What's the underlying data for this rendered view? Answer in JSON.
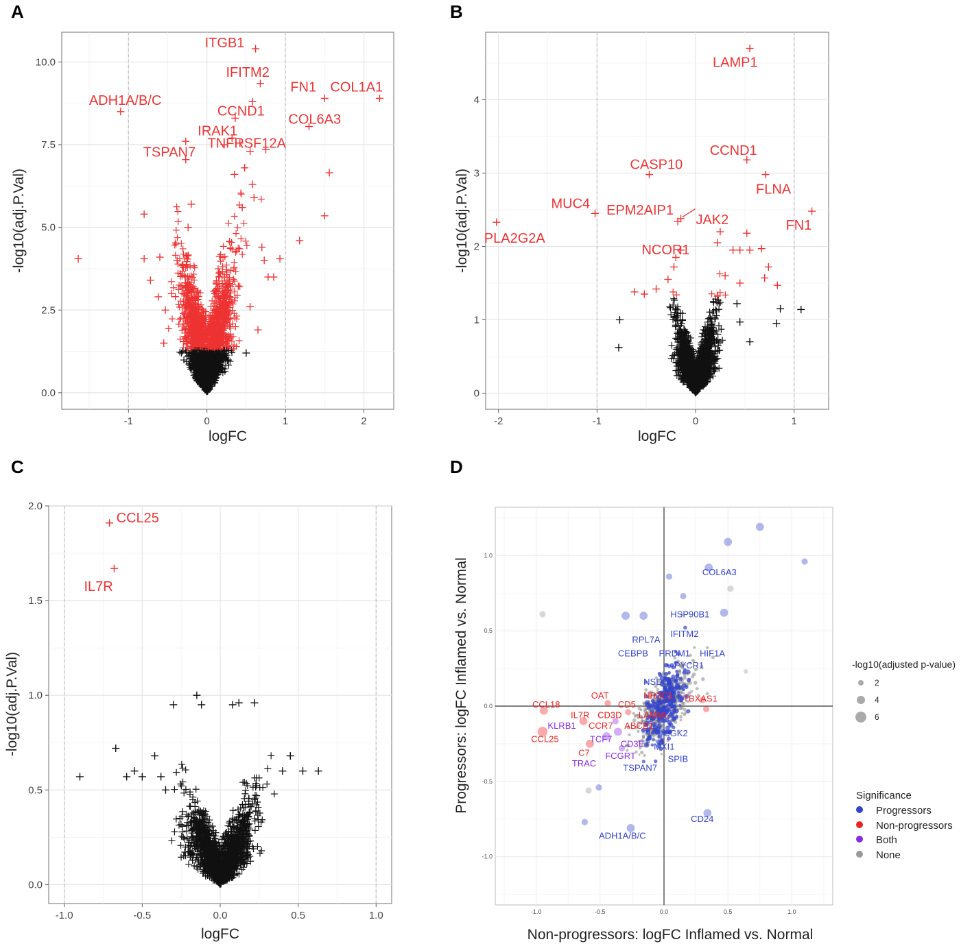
{
  "chart_data": [
    {
      "panel": "A",
      "type": "scatter",
      "xlabel": "logFC",
      "ylabel": "-log10(adj.P.Val)",
      "xlim": [
        -1.85,
        2.38
      ],
      "ylim": [
        -0.5,
        10.9
      ],
      "xticks": [
        -1,
        0,
        1,
        2
      ],
      "yticks": [
        0.0,
        2.5,
        5.0,
        7.5,
        10.0
      ],
      "ytick_labels": [
        "0.0",
        "2.5",
        "5.0",
        "7.5",
        "10.0"
      ],
      "vlines": [
        -1,
        1
      ],
      "sig_threshold": 1.3,
      "cloud": {
        "n": 2600,
        "spread": 0.15,
        "exp": 0.2,
        "ymax": 9.4,
        "seed": 11
      },
      "points": [
        {
          "x": 0.62,
          "y": 10.4,
          "label": "ITGB1"
        },
        {
          "x": 0.68,
          "y": 9.35,
          "label": "IFITM2"
        },
        {
          "x": 1.5,
          "y": 8.9,
          "label": "FN1"
        },
        {
          "x": 2.2,
          "y": 8.9,
          "label": "COL1A1"
        },
        {
          "x": -1.1,
          "y": 8.5,
          "label": "ADH1A/B/C"
        },
        {
          "x": 0.36,
          "y": 8.3,
          "label": "CCND1"
        },
        {
          "x": 1.3,
          "y": 8.05,
          "label": "COL6A3"
        },
        {
          "x": 0.32,
          "y": 7.7,
          "label": "IRAK1"
        },
        {
          "x": -0.27,
          "y": 7.05,
          "label": "TSPAN7"
        },
        {
          "x": 0.75,
          "y": 7.35,
          "label": "TNFRSF12A"
        },
        {
          "x": -1.64,
          "y": 4.05
        },
        {
          "x": -0.8,
          "y": 5.4
        },
        {
          "x": -0.8,
          "y": 4.05
        },
        {
          "x": -0.72,
          "y": 3.4
        },
        {
          "x": -0.62,
          "y": 2.9
        },
        {
          "x": -0.6,
          "y": 4.1
        },
        {
          "x": -0.55,
          "y": 1.5
        },
        {
          "x": -0.53,
          "y": 2.5
        },
        {
          "x": -0.45,
          "y": 3.0
        },
        {
          "x": -0.38,
          "y": 4.0
        },
        {
          "x": -0.27,
          "y": 7.6
        },
        {
          "x": -0.24,
          "y": 5.0
        },
        {
          "x": -0.2,
          "y": 5.7
        },
        {
          "x": 0.22,
          "y": 7.5
        },
        {
          "x": 0.42,
          "y": 7.55
        },
        {
          "x": 0.55,
          "y": 7.3
        },
        {
          "x": 0.58,
          "y": 8.8
        },
        {
          "x": 0.48,
          "y": 6.8
        },
        {
          "x": 0.58,
          "y": 6.3
        },
        {
          "x": 0.35,
          "y": 6.6
        },
        {
          "x": 0.45,
          "y": 5.6
        },
        {
          "x": 0.6,
          "y": 5.9
        },
        {
          "x": 0.7,
          "y": 4.4
        },
        {
          "x": 0.73,
          "y": 4.0
        },
        {
          "x": 0.78,
          "y": 3.5
        },
        {
          "x": 0.85,
          "y": 3.5
        },
        {
          "x": 0.93,
          "y": 4.05
        },
        {
          "x": 1.18,
          "y": 4.6
        },
        {
          "x": 1.5,
          "y": 5.35
        },
        {
          "x": 1.56,
          "y": 6.65
        },
        {
          "x": 0.65,
          "y": 1.9
        },
        {
          "x": 0.5,
          "y": 1.2
        },
        {
          "x": 0.55,
          "y": 2.6
        }
      ]
    },
    {
      "panel": "B",
      "type": "scatter",
      "xlabel": "logFC",
      "ylabel": "-log10(adj.P.Val)",
      "xlim": [
        -2.13,
        1.35
      ],
      "ylim": [
        -0.22,
        4.92
      ],
      "xticks": [
        -2,
        -1,
        0,
        1
      ],
      "yticks": [
        0,
        1,
        2,
        3,
        4
      ],
      "ytick_labels": [
        "0",
        "1",
        "2",
        "3",
        "4"
      ],
      "vlines": [
        -1,
        1
      ],
      "sig_threshold": 1.3,
      "cloud": {
        "n": 2000,
        "spread": 0.09,
        "exp": 0.22,
        "ymax": 2.05,
        "seed": 23
      },
      "points": [
        {
          "x": 0.55,
          "y": 4.7,
          "label": "LAMP1"
        },
        {
          "x": 0.52,
          "y": 3.18,
          "label": "CCND1"
        },
        {
          "x": -0.47,
          "y": 2.98,
          "label": "CASP10"
        },
        {
          "x": 0.71,
          "y": 2.98,
          "label": "FLNA"
        },
        {
          "x": -1.02,
          "y": 2.45,
          "label": "MUC4"
        },
        {
          "x": -0.18,
          "y": 2.34,
          "label": "EPM2AIP1"
        },
        {
          "x": -0.15,
          "y": 2.38,
          "label": "JAK2"
        },
        {
          "x": -2.02,
          "y": 2.33,
          "label": "PLA2G2A"
        },
        {
          "x": -0.15,
          "y": 1.95,
          "label": "NCOR1"
        },
        {
          "x": 1.18,
          "y": 2.48,
          "label": "FN1"
        },
        {
          "x": -0.2,
          "y": 1.85
        },
        {
          "x": 0.52,
          "y": 2.18
        },
        {
          "x": 0.25,
          "y": 2.2
        },
        {
          "x": 0.22,
          "y": 2.05
        },
        {
          "x": 0.38,
          "y": 1.95
        },
        {
          "x": 0.45,
          "y": 1.95
        },
        {
          "x": 0.55,
          "y": 1.95
        },
        {
          "x": 0.67,
          "y": 1.97
        },
        {
          "x": 0.74,
          "y": 1.72
        },
        {
          "x": 0.7,
          "y": 1.57
        },
        {
          "x": 0.83,
          "y": 1.47
        },
        {
          "x": 0.45,
          "y": 1.5
        },
        {
          "x": -0.62,
          "y": 1.38
        },
        {
          "x": -0.52,
          "y": 1.35
        },
        {
          "x": -0.4,
          "y": 1.42
        },
        {
          "x": -0.28,
          "y": 1.55
        },
        {
          "x": -0.22,
          "y": 1.72
        },
        {
          "x": 0.3,
          "y": 1.6
        },
        {
          "x": -0.77,
          "y": 1.0
        },
        {
          "x": -0.78,
          "y": 0.62
        },
        {
          "x": 0.42,
          "y": 1.22
        },
        {
          "x": 0.82,
          "y": 0.95
        },
        {
          "x": 0.86,
          "y": 1.15
        },
        {
          "x": 1.07,
          "y": 1.14
        },
        {
          "x": 0.45,
          "y": 0.97
        },
        {
          "x": 0.55,
          "y": 0.7
        }
      ]
    },
    {
      "panel": "C",
      "type": "scatter",
      "xlabel": "logFC",
      "ylabel": "-log10(adj.P.Val)",
      "xlim": [
        -1.1,
        1.1
      ],
      "ylim": [
        -0.1,
        2.0
      ],
      "xticks": [
        -1.0,
        -0.5,
        0.0,
        0.5,
        1.0
      ],
      "yticks": [
        0.0,
        0.5,
        1.0,
        1.5,
        2.0
      ],
      "ytick_labels": [
        "0.0",
        "0.5",
        "1.0",
        "1.5",
        "2.0"
      ],
      "vlines": [
        -1,
        1
      ],
      "sig_threshold": 1.3,
      "cloud": {
        "n": 1700,
        "spread": 0.1,
        "exp": 0.5,
        "ymax": 0.98,
        "seed": 37
      },
      "points": [
        {
          "x": -0.71,
          "y": 1.91,
          "label": "CCL25"
        },
        {
          "x": -0.68,
          "y": 1.67,
          "label": "IL7R"
        },
        {
          "x": -0.9,
          "y": 0.57
        },
        {
          "x": -0.67,
          "y": 0.72
        },
        {
          "x": -0.6,
          "y": 0.57
        },
        {
          "x": -0.55,
          "y": 0.6
        },
        {
          "x": -0.5,
          "y": 0.57
        },
        {
          "x": -0.42,
          "y": 0.68
        },
        {
          "x": -0.38,
          "y": 0.57
        },
        {
          "x": -0.35,
          "y": 0.5
        },
        {
          "x": 0.45,
          "y": 0.68
        },
        {
          "x": 0.4,
          "y": 0.6
        },
        {
          "x": 0.53,
          "y": 0.6
        },
        {
          "x": 0.63,
          "y": 0.6
        },
        {
          "x": -0.3,
          "y": 0.95
        },
        {
          "x": -0.15,
          "y": 1.0
        },
        {
          "x": 0.12,
          "y": 0.96
        },
        {
          "x": 0.22,
          "y": 0.96
        },
        {
          "x": 0.08,
          "y": 0.95
        },
        {
          "x": -0.12,
          "y": 0.95
        }
      ]
    },
    {
      "panel": "D",
      "type": "scatter",
      "xlabel": "Non-progressors: logFC Inflamed vs. Normal",
      "ylabel": "Progressors: logFC Inflamed vs. Normal",
      "xlim": [
        -1.32,
        1.32
      ],
      "ylim": [
        -1.32,
        1.32
      ],
      "xticks": [
        -1.0,
        -0.5,
        0.0,
        0.5,
        1.0
      ],
      "xtick_labels": [
        "-1.0",
        "-0.5",
        "0.0",
        "0.5",
        "1.0"
      ],
      "yticks": [
        -1.0,
        -0.5,
        0.0,
        0.5,
        1.0
      ],
      "ytick_labels": [
        "-1.0",
        "-0.5",
        "0.0",
        "0.5",
        "1.0"
      ],
      "cloud_gray": {
        "n": 500,
        "seed": 51
      },
      "cloud_blue": {
        "n": 260,
        "seed": 52
      },
      "colors": {
        "Progressors": "#3344cc",
        "Non-progressors": "#ee2222",
        "Both": "#8a2be2",
        "None": "#999999"
      },
      "points": [
        {
          "x": 0.75,
          "y": 1.19,
          "group": "Progressors",
          "size": 3
        },
        {
          "x": 1.1,
          "y": 0.96,
          "group": "Progressors",
          "size": 2
        },
        {
          "x": 0.5,
          "y": 1.09,
          "group": "Progressors",
          "size": 3
        },
        {
          "x": 0.35,
          "y": 0.92,
          "group": "Progressors",
          "size": 3
        },
        {
          "x": 0.04,
          "y": 0.86,
          "group": "Progressors",
          "size": 2
        },
        {
          "x": -0.16,
          "y": 0.6,
          "group": "Progressors",
          "size": 3
        },
        {
          "x": -0.3,
          "y": 0.6,
          "group": "Progressors",
          "size": 3
        },
        {
          "x": 0.15,
          "y": 0.73,
          "group": "Progressors",
          "size": 2
        },
        {
          "x": 0.47,
          "y": 0.62,
          "group": "Progressors",
          "size": 3
        },
        {
          "x": 0.34,
          "y": -0.71,
          "group": "Progressors",
          "size": 3
        },
        {
          "x": -0.26,
          "y": -0.81,
          "group": "Progressors",
          "size": 3
        },
        {
          "x": -0.51,
          "y": -0.54,
          "group": "Progressors",
          "size": 2
        },
        {
          "x": -0.62,
          "y": -0.77,
          "group": "Progressors",
          "size": 2
        },
        {
          "x": -0.94,
          "y": -0.03,
          "group": "Non-progressors",
          "size": 3
        },
        {
          "x": -0.95,
          "y": -0.17,
          "group": "Non-progressors",
          "size": 4
        },
        {
          "x": -0.58,
          "y": -0.25,
          "group": "Non-progressors",
          "size": 3
        },
        {
          "x": -0.63,
          "y": -0.1,
          "group": "Non-progressors",
          "size": 3
        },
        {
          "x": -0.44,
          "y": 0.02,
          "group": "Non-progressors",
          "size": 2
        },
        {
          "x": -0.28,
          "y": -0.04,
          "group": "Non-progressors",
          "size": 2
        },
        {
          "x": 0.33,
          "y": -0.02,
          "group": "Non-progressors",
          "size": 2
        },
        {
          "x": 0.3,
          "y": 0.04,
          "group": "Non-progressors",
          "size": 2
        },
        {
          "x": -0.45,
          "y": -0.2,
          "group": "Both",
          "size": 3
        },
        {
          "x": -0.36,
          "y": -0.17,
          "group": "Both",
          "size": 3
        },
        {
          "x": -0.33,
          "y": -0.28,
          "group": "Both",
          "size": 2
        },
        {
          "x": -0.38,
          "y": -0.1,
          "group": "Both",
          "size": 2
        },
        {
          "x": -0.95,
          "y": 0.61,
          "group": "None",
          "size": 2
        },
        {
          "x": 0.52,
          "y": 0.78,
          "group": "None",
          "size": 2
        },
        {
          "x": -0.59,
          "y": -0.56,
          "group": "None",
          "size": 2
        },
        {
          "x": 0.64,
          "y": 0.23,
          "group": "None",
          "size": 1
        }
      ],
      "labels": [
        {
          "text": "COL6A3",
          "x": 0.3,
          "y": 0.87,
          "group": "Progressors"
        },
        {
          "text": "HSP90B1",
          "x": 0.05,
          "y": 0.59,
          "group": "Progressors"
        },
        {
          "text": "IFITM2",
          "x": 0.05,
          "y": 0.46,
          "group": "Progressors"
        },
        {
          "text": "RPL7A",
          "x": -0.25,
          "y": 0.42,
          "group": "Progressors"
        },
        {
          "text": "CEBPB",
          "x": -0.36,
          "y": 0.33,
          "group": "Progressors"
        },
        {
          "text": "PRDM1",
          "x": -0.04,
          "y": 0.33,
          "group": "Progressors"
        },
        {
          "text": "HIF1A",
          "x": 0.28,
          "y": 0.33,
          "group": "Progressors"
        },
        {
          "text": "PYCR1",
          "x": 0.08,
          "y": 0.25,
          "group": "Progressors"
        },
        {
          "text": "NSD",
          "x": -0.16,
          "y": 0.14,
          "group": "Progressors"
        },
        {
          "text": "OAT",
          "x": -0.57,
          "y": 0.05,
          "group": "Non-progressors"
        },
        {
          "text": "CCL18",
          "x": -1.03,
          "y": -0.01,
          "group": "Non-progressors"
        },
        {
          "text": "CD5",
          "x": -0.36,
          "y": -0.01,
          "group": "Non-progressors"
        },
        {
          "text": "NR3C1",
          "x": -0.16,
          "y": 0.05,
          "group": "Non-progressors"
        },
        {
          "text": "TBXAS1",
          "x": 0.15,
          "y": 0.03,
          "group": "Non-progressors"
        },
        {
          "text": "IL7R",
          "x": -0.73,
          "y": -0.08,
          "group": "Non-progressors"
        },
        {
          "text": "CD3D",
          "x": -0.52,
          "y": -0.08,
          "group": "Non-progressors"
        },
        {
          "text": "LAMML",
          "x": -0.2,
          "y": -0.08,
          "group": "Non-progressors"
        },
        {
          "text": "KLRB1",
          "x": -0.91,
          "y": -0.15,
          "group": "Both"
        },
        {
          "text": "CCR7",
          "x": -0.59,
          "y": -0.15,
          "group": "Non-progressors"
        },
        {
          "text": "ABCB1",
          "x": -0.31,
          "y": -0.15,
          "group": "Non-progressors"
        },
        {
          "text": "CCL25",
          "x": -1.04,
          "y": -0.24,
          "group": "Non-progressors"
        },
        {
          "text": "TCF7",
          "x": -0.58,
          "y": -0.24,
          "group": "Both"
        },
        {
          "text": "SGK2",
          "x": 0.0,
          "y": -0.2,
          "group": "Progressors"
        },
        {
          "text": "CD3E",
          "x": -0.34,
          "y": -0.27,
          "group": "Both"
        },
        {
          "text": "MXI1",
          "x": -0.08,
          "y": -0.29,
          "group": "Progressors"
        },
        {
          "text": "C7",
          "x": -0.67,
          "y": -0.33,
          "group": "Non-progressors"
        },
        {
          "text": "FCGRT",
          "x": -0.46,
          "y": -0.35,
          "group": "Both"
        },
        {
          "text": "SPIB",
          "x": 0.03,
          "y": -0.37,
          "group": "Progressors"
        },
        {
          "text": "TRAC",
          "x": -0.72,
          "y": -0.4,
          "group": "Both"
        },
        {
          "text": "TSPAN7",
          "x": -0.32,
          "y": -0.43,
          "group": "Progressors"
        },
        {
          "text": "CD24",
          "x": 0.21,
          "y": -0.77,
          "group": "Progressors"
        },
        {
          "text": "ADH1A/B/C",
          "x": -0.51,
          "y": -0.88,
          "group": "Progressors"
        }
      ],
      "legend_size": {
        "title": "-log10(adjusted p-value)",
        "items": [
          "2",
          "4",
          "6"
        ]
      },
      "legend_color": {
        "title": "Significance",
        "items": [
          "Progressors",
          "Non-progressors",
          "Both",
          "None"
        ]
      }
    }
  ]
}
